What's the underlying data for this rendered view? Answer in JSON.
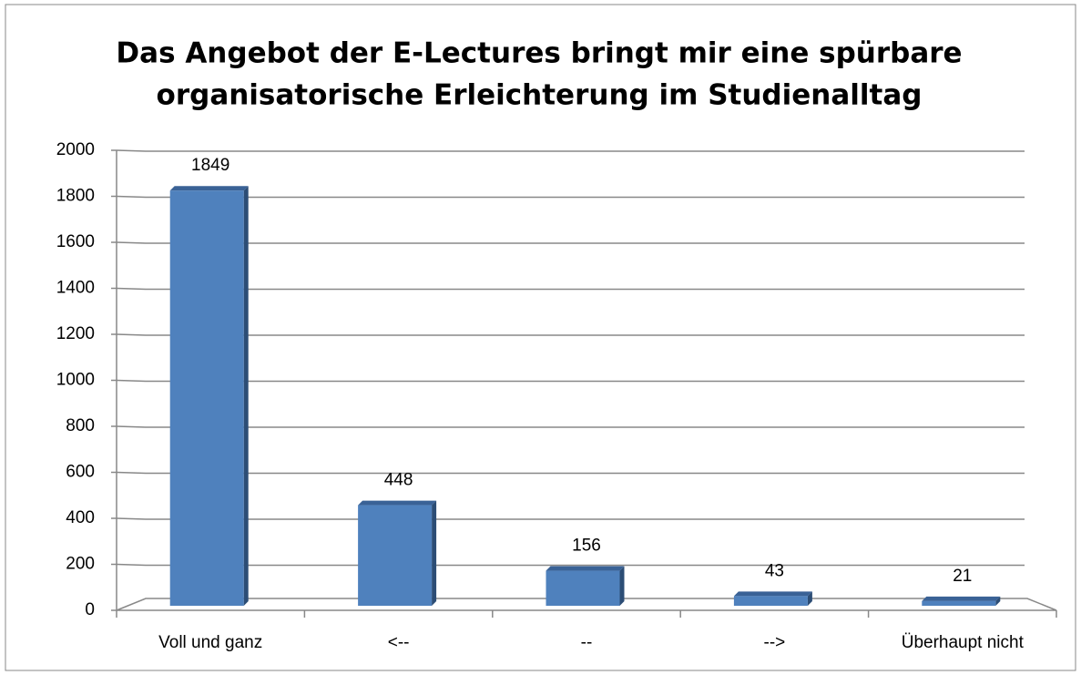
{
  "chart_data": {
    "type": "bar",
    "title": [
      "Das Angebot der E-Lectures bringt mir eine spürbare",
      "organisatorische Erleichterung im Studienalltag"
    ],
    "categories": [
      "Voll und ganz",
      "<--",
      "--",
      "-->",
      "Überhaupt nicht"
    ],
    "values": [
      1849,
      448,
      156,
      43,
      21
    ],
    "color": "#4f81bd",
    "ylim": [
      0,
      2000
    ],
    "yticks": [
      0,
      200,
      400,
      600,
      800,
      1000,
      1200,
      1400,
      1600,
      1800,
      2000
    ],
    "grid": true
  }
}
